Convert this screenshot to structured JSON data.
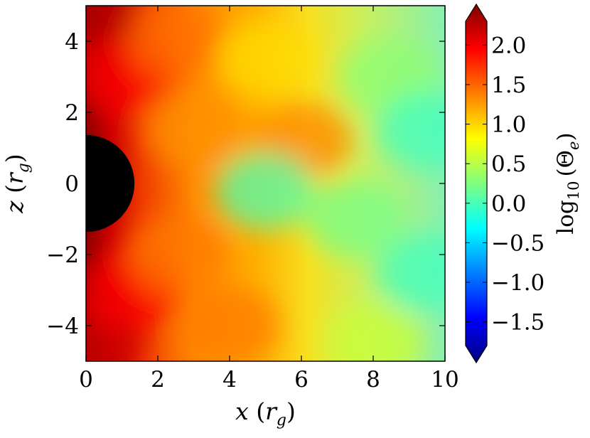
{
  "chart_data": {
    "type": "heatmap",
    "title": "",
    "xlabel": {
      "var": "x",
      "open": " (",
      "unit": "r",
      "sub": "g",
      "close": ")"
    },
    "ylabel": {
      "var": "z",
      "open": " (",
      "unit": "r",
      "sub": "g",
      "close": ")"
    },
    "xlim": [
      0,
      10
    ],
    "ylim": [
      -5,
      5
    ],
    "xticks": [
      0,
      2,
      4,
      6,
      8,
      10
    ],
    "yticks": [
      -4,
      -2,
      0,
      2,
      4
    ],
    "xtick_labels": [
      "0",
      "2",
      "4",
      "6",
      "8",
      "10"
    ],
    "ytick_labels": [
      "−4",
      "−2",
      "0",
      "2",
      "4"
    ],
    "black_hole": {
      "center_x": 0,
      "center_z": 0,
      "radius": 1.35,
      "color": "#000000"
    },
    "colorbar": {
      "label": {
        "prefix": "log",
        "sub": "10",
        "mid": "(Θ",
        "sub2": "e",
        "end": ")"
      },
      "range": [
        -1.8,
        2.3
      ],
      "extend": "both",
      "ticks": [
        -1.5,
        -1.0,
        -0.5,
        0.0,
        0.5,
        1.0,
        1.5,
        2.0
      ],
      "tick_labels": [
        "−1.5",
        "−1.0",
        "−0.5",
        "0.0",
        "0.5",
        "1.0",
        "1.5",
        "2.0"
      ],
      "colormap": "jet",
      "stops": [
        "#00007f",
        "#0000ff",
        "#007fff",
        "#00ffff",
        "#7fff7f",
        "#ffff00",
        "#ff7f00",
        "#ff0000",
        "#7f0000"
      ]
    },
    "field_samples": {
      "description_units": "log10(Theta_e) at (x, z) in r_g",
      "points": [
        {
          "x": 0.1,
          "z": 4.5,
          "v": 2.1
        },
        {
          "x": 0.2,
          "z": -4.5,
          "v": 2.0
        },
        {
          "x": 1.0,
          "z": 3.0,
          "v": 1.8
        },
        {
          "x": 1.2,
          "z": -3.0,
          "v": 1.8
        },
        {
          "x": 2.5,
          "z": 4.0,
          "v": 1.35
        },
        {
          "x": 3.0,
          "z": 1.5,
          "v": 1.2
        },
        {
          "x": 2.5,
          "z": -2.0,
          "v": 1.3
        },
        {
          "x": 4.0,
          "z": -4.0,
          "v": 1.3
        },
        {
          "x": 5.0,
          "z": 3.5,
          "v": 0.9
        },
        {
          "x": 6.0,
          "z": 1.2,
          "v": 1.25
        },
        {
          "x": 5.0,
          "z": -0.2,
          "v": 0.05
        },
        {
          "x": 7.5,
          "z": -1.0,
          "v": 0.2
        },
        {
          "x": 8.5,
          "z": 3.0,
          "v": 0.3
        },
        {
          "x": 9.5,
          "z": 1.5,
          "v": 0.0
        },
        {
          "x": 9.5,
          "z": -2.5,
          "v": 0.0
        },
        {
          "x": 8.0,
          "z": -4.5,
          "v": 0.55
        }
      ]
    }
  }
}
